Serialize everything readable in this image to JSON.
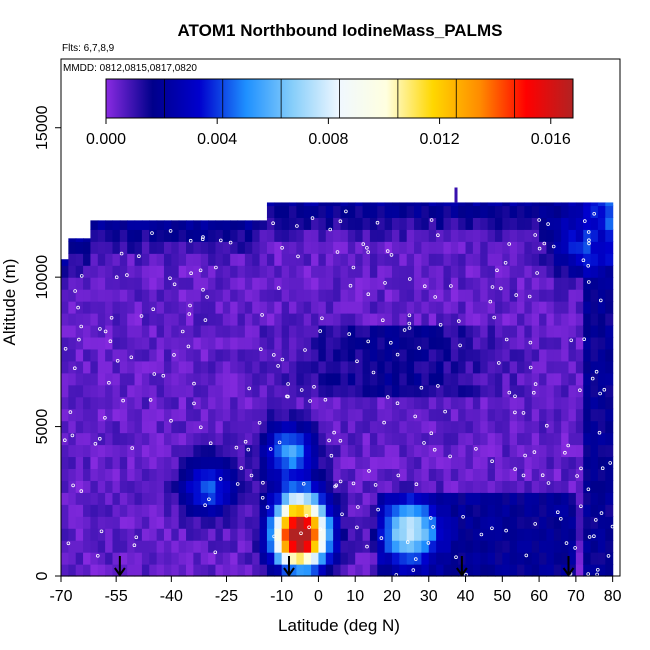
{
  "chart_data": {
    "type": "heatmap",
    "title": "ATOM1 Northbound IodineMass_PALMS",
    "flights_note": "Flts: 6,7,8,9",
    "dates_note": "MMDD: 0812,0815,0817,0820",
    "xlabel": "Latitude (deg N)",
    "ylabel": "Altitude (m)",
    "xlim": [
      -70,
      82
    ],
    "ylim": [
      0,
      17300
    ],
    "x_ticks": [
      "-70",
      "-55",
      "-40",
      "-25",
      "-10",
      "0",
      "10",
      "20",
      "30",
      "40",
      "50",
      "60",
      "70",
      "80"
    ],
    "x_tick_values": [
      -70,
      -55,
      -40,
      -25,
      -10,
      0,
      10,
      20,
      30,
      40,
      50,
      60,
      70,
      80
    ],
    "y_ticks": [
      "0",
      "5000",
      "10000",
      "15000"
    ],
    "y_tick_values": [
      0,
      5000,
      10000,
      15000
    ],
    "colorbar": {
      "min": 0.0,
      "max": 0.0168,
      "tick_labels": [
        "0.000",
        "0.004",
        "0.008",
        "0.012",
        "0.016"
      ],
      "tick_values": [
        0.0,
        0.004,
        0.008,
        0.012,
        0.016
      ],
      "colors": [
        "#8a2be2",
        "#00008b",
        "#0000cd",
        "#1e90ff",
        "#87cefa",
        "#f0f8ff",
        "#ffffe0",
        "#ffd700",
        "#ff8c00",
        "#ff0000",
        "#b22222"
      ]
    },
    "flight_marker_latitudes": [
      -54,
      -8,
      39,
      68
    ],
    "grid": false,
    "legend": "colorbar top",
    "data_extent": {
      "lat_range": [
        -70,
        80
      ],
      "alt_top_by_lat": [
        {
          "lat": -70,
          "alt": 10600
        },
        {
          "lat": -68,
          "alt": 11300
        },
        {
          "lat": -62,
          "alt": 11900
        },
        {
          "lat": -15,
          "alt": 12500
        },
        {
          "lat": 79,
          "alt": 11300
        }
      ]
    },
    "hotspots": [
      {
        "lat": -5,
        "alt": 1200,
        "value": 0.016
      },
      {
        "lat": -5,
        "alt": 2200,
        "value": 0.007
      },
      {
        "lat": -8,
        "alt": 4200,
        "value": 0.005
      },
      {
        "lat": 25,
        "alt": 1500,
        "value": 0.006
      },
      {
        "lat": -30,
        "alt": 3000,
        "value": 0.004
      },
      {
        "lat": 70,
        "alt": 11000,
        "value": 0.003
      }
    ],
    "background_value": 0.0005
  }
}
